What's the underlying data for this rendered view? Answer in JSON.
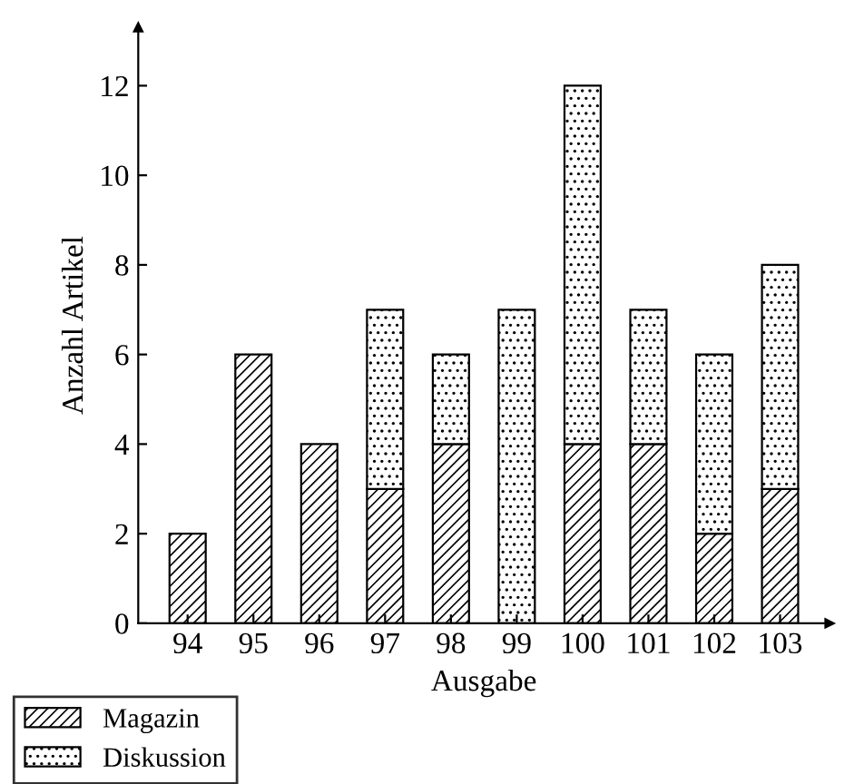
{
  "chart_data": {
    "type": "bar",
    "stacked": true,
    "xlabel": "Ausgabe",
    "ylabel": "Anzahl Artikel",
    "categories": [
      "94",
      "95",
      "96",
      "97",
      "98",
      "99",
      "100",
      "101",
      "102",
      "103"
    ],
    "series": [
      {
        "name": "Magazin",
        "color": "#000000",
        "values": [
          2,
          6,
          4,
          3,
          4,
          null,
          4,
          4,
          2,
          3
        ]
      },
      {
        "name": "Diskussion",
        "color": "#000000",
        "values": [
          null,
          null,
          null,
          4,
          2,
          7,
          8,
          3,
          4,
          5
        ]
      }
    ],
    "ylim": [
      0,
      13.3
    ],
    "yticks": [
      0,
      2,
      4,
      6,
      8,
      10,
      12
    ],
    "grid": false,
    "legend": "bottom left"
  }
}
